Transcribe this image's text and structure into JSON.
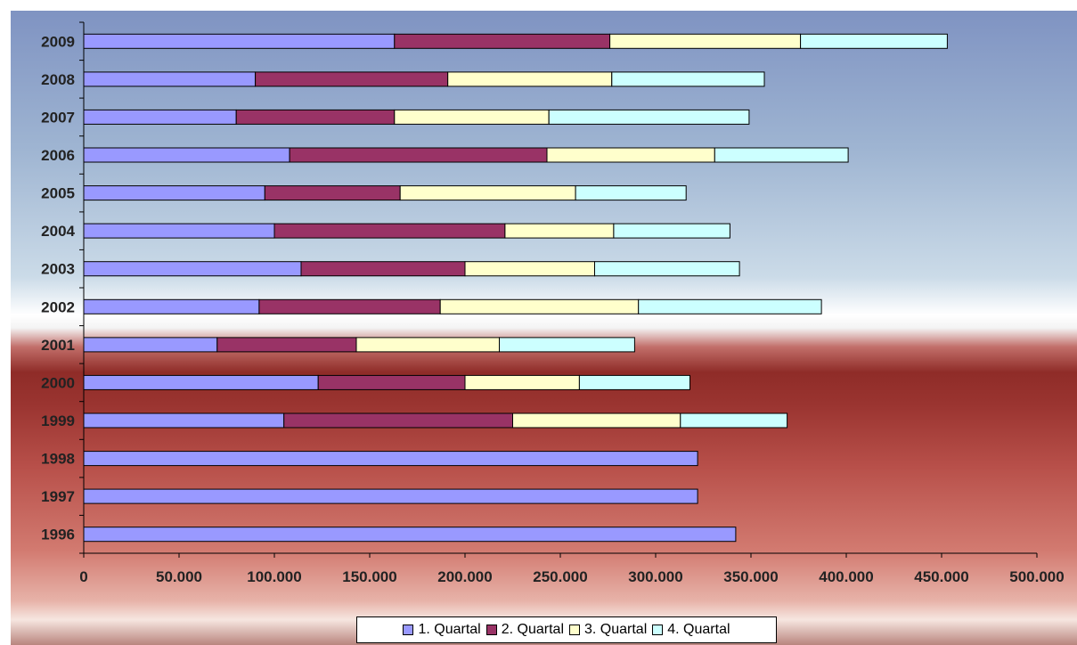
{
  "chart_data": {
    "type": "bar",
    "orientation": "horizontal",
    "stacked": true,
    "categories": [
      "2009",
      "2008",
      "2007",
      "2006",
      "2005",
      "2004",
      "2003",
      "2002",
      "2001",
      "2000",
      "1999",
      "1998",
      "1997",
      "1996"
    ],
    "series": [
      {
        "name": "1. Quartal",
        "color": "#9999ff",
        "values": [
          163000,
          90000,
          80000,
          108000,
          95000,
          100000,
          114000,
          92000,
          70000,
          123000,
          105000,
          322000,
          322000,
          342000
        ]
      },
      {
        "name": "2. Quartal",
        "color": "#993366",
        "values": [
          113000,
          101000,
          83000,
          135000,
          71000,
          121000,
          86000,
          95000,
          73000,
          77000,
          120000,
          0,
          0,
          0
        ]
      },
      {
        "name": "3. Quartal",
        "color": "#ffffcc",
        "values": [
          100000,
          86000,
          81000,
          88000,
          92000,
          57000,
          68000,
          104000,
          75000,
          60000,
          88000,
          0,
          0,
          0
        ]
      },
      {
        "name": "4. Quartal",
        "color": "#ccffff",
        "values": [
          77000,
          80000,
          105000,
          70000,
          58000,
          61000,
          76000,
          96000,
          71000,
          58000,
          56000,
          0,
          0,
          0
        ]
      }
    ],
    "xlim": [
      0,
      500000
    ],
    "x_ticks": [
      "0",
      "50.000",
      "100.000",
      "150.000",
      "200.000",
      "250.000",
      "300.000",
      "350.000",
      "400.000",
      "450.000",
      "500.000"
    ],
    "title": "",
    "xlabel": "",
    "ylabel": "",
    "grid": false,
    "legend_position": "bottom"
  }
}
